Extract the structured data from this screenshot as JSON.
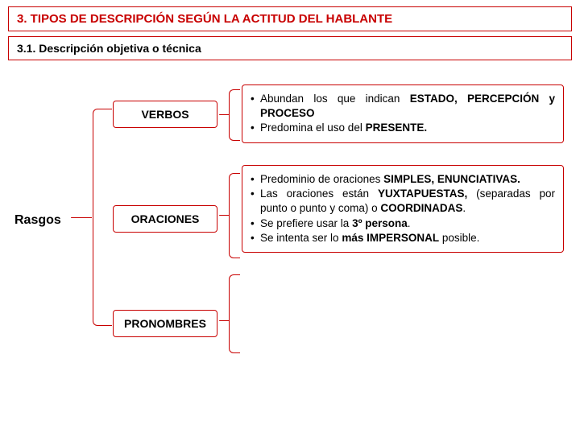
{
  "header": "3. TIPOS DE DESCRIPCIÓN SEGÚN LA ACTITUD DEL HABLANTE",
  "subheader": "3.1. Descripción objetiva o técnica",
  "root_label": "Rasgos",
  "nodes": {
    "verbos": "VERBOS",
    "oraciones": "ORACIONES",
    "pronombres": "PRONOMBRES"
  },
  "verbos_desc": [
    {
      "pre": "Abundan los que indican ",
      "bold": "ESTADO, PERCEPCIÓN y PROCESO",
      "post": ""
    },
    {
      "pre": "Predomina el uso del ",
      "bold": "PRESENTE.",
      "post": ""
    }
  ],
  "big_desc": [
    {
      "pre": "Predominio de oraciones ",
      "bold": "SIMPLES, ENUNCIATIVAS.",
      "post": ""
    },
    {
      "pre": "Las oraciones están ",
      "bold": "YUXTAPUESTAS,",
      "post": " (separadas por punto o punto y coma) o ",
      "bold2": "COORDINADAS",
      "post2": "."
    },
    {
      "pre": "Se prefiere usar la ",
      "bold": "3º persona",
      "post": "."
    },
    {
      "pre": "Se intenta ser lo ",
      "bold": "más IMPERSONAL",
      "post": " posible."
    }
  ],
  "colors": {
    "border": "#c80000",
    "header_text": "#c80000",
    "text": "#000000",
    "background": "#ffffff"
  },
  "fonts": {
    "header_size": 15,
    "subheader_size": 14,
    "node_size": 14,
    "body_size": 13.5,
    "root_size": 16
  }
}
